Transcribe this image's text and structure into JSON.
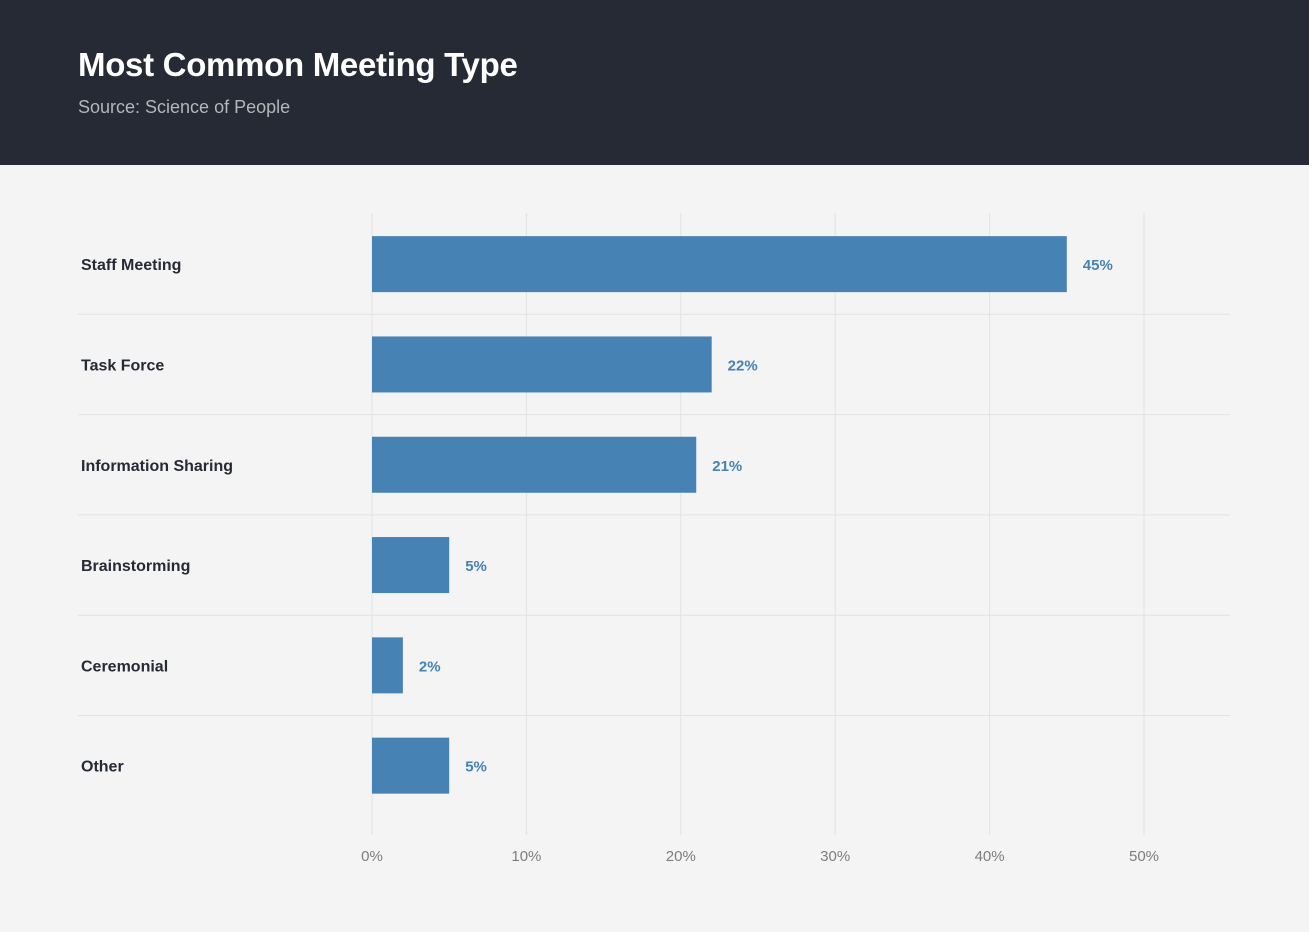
{
  "header": {
    "title": "Most Common Meeting Type",
    "subtitle": "Source: Science of People"
  },
  "chart_data": {
    "type": "bar",
    "orientation": "horizontal",
    "title": "Most Common Meeting Type",
    "subtitle": "Source: Science of People",
    "categories": [
      "Staff Meeting",
      "Task Force",
      "Information Sharing",
      "Brainstorming",
      "Ceremonial",
      "Other"
    ],
    "values": [
      45,
      22,
      21,
      5,
      2,
      5
    ],
    "value_labels": [
      "45%",
      "22%",
      "21%",
      "5%",
      "2%",
      "5%"
    ],
    "xlim": [
      0,
      55
    ],
    "x_ticks": [
      0,
      10,
      20,
      30,
      40,
      50
    ],
    "x_tick_labels": [
      "0%",
      "10%",
      "20%",
      "30%",
      "40%",
      "50%"
    ],
    "xlabel": "",
    "ylabel": "",
    "grid": true,
    "colors": {
      "bar": "#4682b4",
      "value_label": "#4682b4",
      "header_bg": "#262a35",
      "background": "#f4f4f4"
    }
  }
}
